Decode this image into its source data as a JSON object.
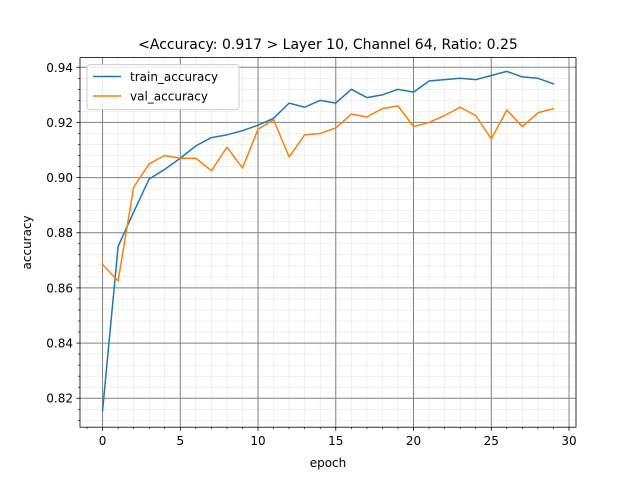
{
  "chart_data": {
    "type": "line",
    "title": "<Accuracy: 0.917 > Layer 10, Channel 64, Ratio: 0.25",
    "xlabel": "epoch",
    "ylabel": "accuracy",
    "xlim": [
      -1.45,
      30.45
    ],
    "ylim": [
      0.8095,
      0.9435
    ],
    "x_major_ticks": [
      0,
      5,
      10,
      15,
      20,
      25,
      30
    ],
    "x_minor_step": 1,
    "y_major_ticks": [
      0.82,
      0.84,
      0.86,
      0.88,
      0.9,
      0.92,
      0.94
    ],
    "y_tick_labels": [
      "0.82",
      "0.84",
      "0.86",
      "0.88",
      "0.90",
      "0.92",
      "0.94"
    ],
    "y_minor_step": 0.004,
    "grid": true,
    "legend_position": "top-left",
    "x": [
      0,
      1,
      2,
      3,
      4,
      5,
      6,
      7,
      8,
      9,
      10,
      11,
      12,
      13,
      14,
      15,
      16,
      17,
      18,
      19,
      20,
      21,
      22,
      23,
      24,
      25,
      26,
      27,
      28,
      29
    ],
    "series": [
      {
        "name": "train_accuracy",
        "color": "#1f77b4",
        "values": [
          0.8155,
          0.875,
          0.8875,
          0.8995,
          0.903,
          0.907,
          0.9115,
          0.9145,
          0.9155,
          0.917,
          0.919,
          0.9215,
          0.927,
          0.9255,
          0.928,
          0.927,
          0.932,
          0.929,
          0.93,
          0.932,
          0.931,
          0.935,
          0.9355,
          0.936,
          0.9355,
          0.937,
          0.9385,
          0.9365,
          0.936,
          0.934
        ]
      },
      {
        "name": "val_accuracy",
        "color": "#ff7f0e",
        "values": [
          0.8685,
          0.8625,
          0.8965,
          0.905,
          0.908,
          0.907,
          0.907,
          0.9025,
          0.911,
          0.9035,
          0.9175,
          0.921,
          0.9075,
          0.9155,
          0.916,
          0.918,
          0.923,
          0.922,
          0.925,
          0.926,
          0.9185,
          0.92,
          0.9225,
          0.9255,
          0.9225,
          0.914,
          0.9245,
          0.9185,
          0.9235,
          0.925
        ]
      }
    ]
  }
}
